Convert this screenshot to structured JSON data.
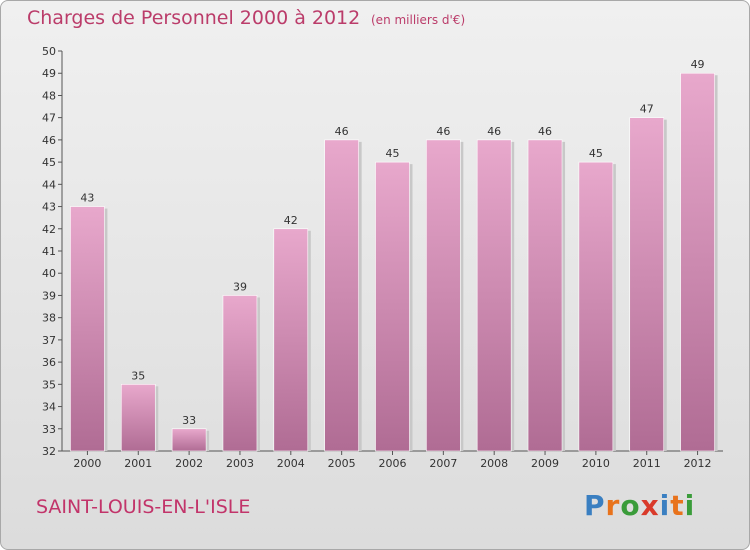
{
  "header": {
    "title": "Charges de Personnel 2000 à 2012",
    "unit": "(en milliers d'€)"
  },
  "commune": "SAINT-LOUIS-EN-L'ISLE",
  "logo": {
    "text": "Proxiti",
    "colors": [
      "#3a7fc1",
      "#e8731c",
      "#3a9c3a",
      "#d93a2a",
      "#3a7fc1",
      "#e8731c",
      "#3a9c3a"
    ]
  },
  "colors": {
    "bar_top": "#e8a8cc",
    "bar_bottom": "#b06c94",
    "bar_shadow": "#c8c8c8",
    "title": "#bb3c6a"
  },
  "chart_data": {
    "type": "bar",
    "title": "Charges de Personnel 2000 à 2012",
    "subtitle": "(en milliers d'€)",
    "categories": [
      "2000",
      "2001",
      "2002",
      "2003",
      "2004",
      "2005",
      "2006",
      "2007",
      "2008",
      "2009",
      "2010",
      "2011",
      "2012"
    ],
    "values": [
      43,
      35,
      33,
      39,
      42,
      46,
      45,
      46,
      46,
      46,
      45,
      47,
      49
    ],
    "ylim": [
      32,
      50
    ],
    "yticks": [
      32,
      33,
      34,
      35,
      36,
      37,
      38,
      39,
      40,
      41,
      42,
      43,
      44,
      45,
      46,
      47,
      48,
      49,
      50
    ],
    "grid": false,
    "legend": "none"
  }
}
